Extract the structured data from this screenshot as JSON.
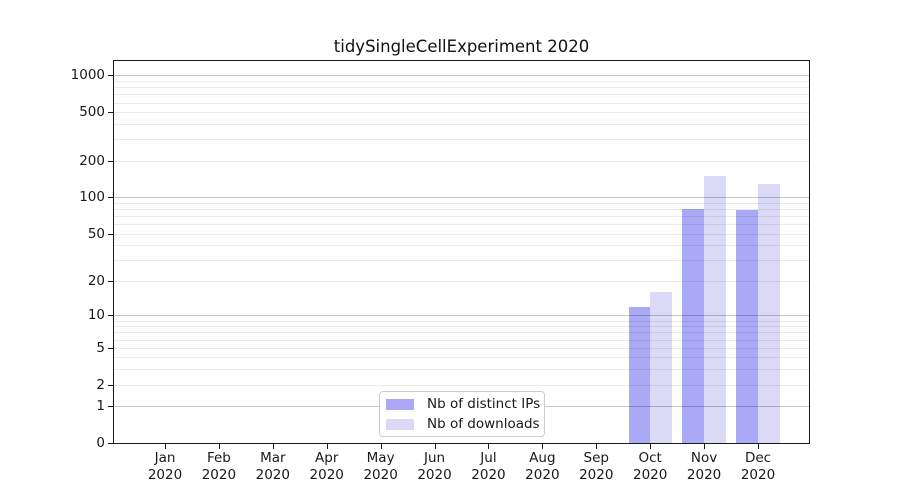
{
  "chart_data": {
    "type": "bar",
    "title": "tidySingleCellExperiment 2020",
    "categories": [
      "Jan",
      "Feb",
      "Mar",
      "Apr",
      "May",
      "Jun",
      "Jul",
      "Aug",
      "Sep",
      "Oct",
      "Nov",
      "Dec"
    ],
    "category_year": "2020",
    "series": [
      {
        "name": "Nb of distinct IPs",
        "color": "#a9a9f5",
        "values": [
          0,
          0,
          0,
          0,
          0,
          0,
          0,
          0,
          0,
          12,
          80,
          79
        ]
      },
      {
        "name": "Nb of downloads",
        "color": "#dadaf7",
        "values": [
          0,
          0,
          0,
          0,
          0,
          0,
          0,
          0,
          0,
          16,
          150,
          130
        ]
      }
    ],
    "y_scale": "log10(1+v)",
    "ylim": [
      0,
      1311
    ],
    "y_ticks": [
      1000,
      500,
      200,
      100,
      50,
      20,
      10,
      5,
      2,
      1,
      0
    ],
    "y_major_gridlines": [
      1,
      10,
      100,
      1000
    ],
    "y_minor_gridlines": [
      2,
      3,
      4,
      5,
      6,
      7,
      8,
      9,
      20,
      30,
      40,
      60,
      70,
      80,
      90,
      200,
      300,
      400,
      600,
      700,
      800,
      900,
      500,
      50
    ],
    "grid": "on",
    "legend_position": "bottom-center",
    "xlabel": "",
    "ylabel": ""
  },
  "colors": {
    "axis_frame": "#1a1a1a",
    "text": "#1a1a1a",
    "grid_major": "rgba(0,0,0,0.22)",
    "grid_minor": "rgba(0,0,0,0.08)",
    "background": "#ffffff"
  }
}
